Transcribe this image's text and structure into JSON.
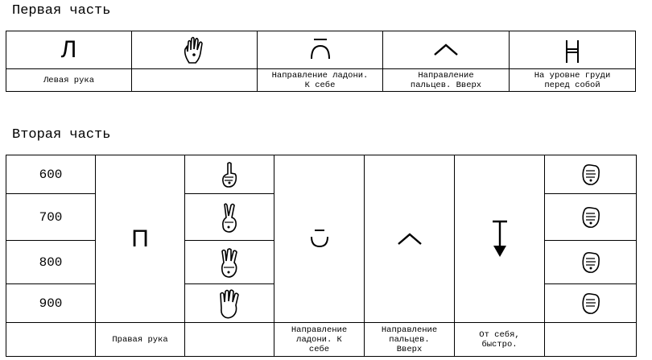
{
  "part1": {
    "title": "Первая часть",
    "symbol_row": [
      "Л",
      "",
      "",
      "",
      ""
    ],
    "captions": [
      "Левая рука",
      "",
      "Направление ладони.\nК себе",
      "Направление\nпальцев. Вверх",
      "На уровне груди\nперед собой"
    ]
  },
  "part2": {
    "title": "Вторая часть",
    "numbers": [
      "600",
      "700",
      "800",
      "900"
    ],
    "hand_letter": "П",
    "captions": [
      "",
      "Правая рука",
      "",
      "Направление\nладони. К\nсебе",
      "Направление\nпальцев.\nВверх",
      "От себя,\nбыстро.",
      ""
    ]
  }
}
